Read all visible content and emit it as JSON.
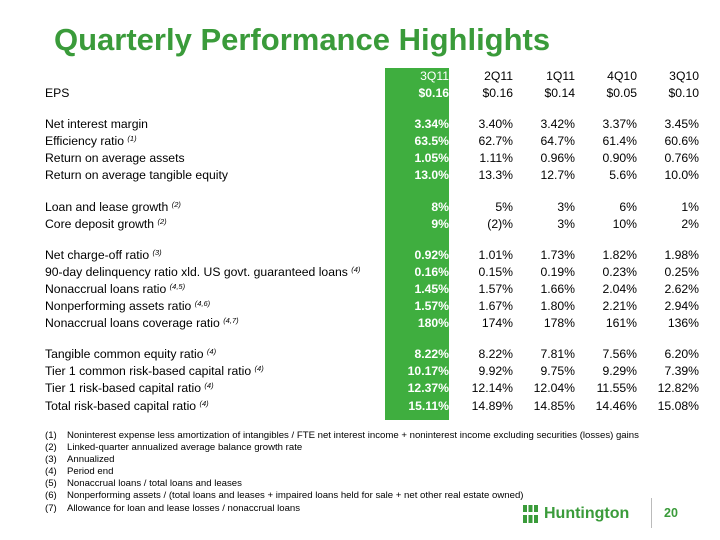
{
  "title": "Quarterly Performance Highlights",
  "colors": {
    "accent": "#3a9b3a",
    "highlight_column": "#3fae3f"
  },
  "columns": [
    "3Q11",
    "2Q11",
    "1Q11",
    "4Q10",
    "3Q10"
  ],
  "rows": [
    {
      "label": "EPS",
      "values": [
        "$0.16",
        "$0.16",
        "$0.14",
        "$0.05",
        "$0.10"
      ]
    },
    {
      "label": "Net interest margin",
      "values": [
        "3.34%",
        "3.40%",
        "3.42%",
        "3.37%",
        "3.45%"
      ]
    },
    {
      "label": "Efficiency ratio",
      "note": "(1)",
      "values": [
        "63.5%",
        "62.7%",
        "64.7%",
        "61.4%",
        "60.6%"
      ]
    },
    {
      "label": "Return on average assets",
      "values": [
        "1.05%",
        "1.11%",
        "0.96%",
        "0.90%",
        "0.76%"
      ]
    },
    {
      "label": "Return on average tangible equity",
      "values": [
        "13.0%",
        "13.3%",
        "12.7%",
        "5.6%",
        "10.0%"
      ]
    },
    {
      "label": "Loan and lease growth",
      "note": "(2)",
      "values": [
        "8%",
        "5%",
        "3%",
        "6%",
        "1%"
      ]
    },
    {
      "label": "Core deposit growth",
      "note": "(2)",
      "values": [
        "9%",
        "(2)%",
        "3%",
        "10%",
        "2%"
      ]
    },
    {
      "label": "Net charge-off ratio",
      "note": "(3)",
      "values": [
        "0.92%",
        "1.01%",
        "1.73%",
        "1.82%",
        "1.98%"
      ]
    },
    {
      "label": "90-day delinquency ratio xld. US govt. guaranteed  loans",
      "note": "(4)",
      "values": [
        "0.16%",
        "0.15%",
        "0.19%",
        "0.23%",
        "0.25%"
      ]
    },
    {
      "label": "Nonaccrual loans ratio",
      "note": "(4,5)",
      "values": [
        "1.45%",
        "1.57%",
        "1.66%",
        "2.04%",
        "2.62%"
      ]
    },
    {
      "label": "Nonperforming assets ratio",
      "note": "(4,6)",
      "values": [
        "1.57%",
        "1.67%",
        "1.80%",
        "2.21%",
        "2.94%"
      ]
    },
    {
      "label": "Nonaccrual loans coverage ratio",
      "note": "(4,7)",
      "values": [
        "180%",
        "174%",
        "178%",
        "161%",
        "136%"
      ]
    },
    {
      "label": "Tangible common equity ratio",
      "note": "(4)",
      "values": [
        "8.22%",
        "8.22%",
        "7.81%",
        "7.56%",
        "6.20%"
      ]
    },
    {
      "label": "Tier 1 common risk-based capital ratio",
      "note": "(4)",
      "values": [
        "10.17%",
        "9.92%",
        "9.75%",
        "9.29%",
        "7.39%"
      ]
    },
    {
      "label": "Tier 1 risk-based capital ratio",
      "note": "(4)",
      "values": [
        "12.37%",
        "12.14%",
        "12.04%",
        "11.55%",
        "12.82%"
      ]
    },
    {
      "label": "Total risk-based capital ratio",
      "note": "(4)",
      "values": [
        "15.11%",
        "14.89%",
        "14.85%",
        "14.46%",
        "15.08%"
      ]
    }
  ],
  "footnotes": [
    {
      "num": "(1)",
      "text": "Noninterest expense less amortization of intangibles / FTE net interest income + noninterest income excluding securities (losses) gains"
    },
    {
      "num": "(2)",
      "text": "Linked-quarter annualized average balance growth rate"
    },
    {
      "num": "(3)",
      "text": "Annualized"
    },
    {
      "num": "(4)",
      "text": "Period end"
    },
    {
      "num": "(5)",
      "text": "Nonaccrual loans / total loans and leases"
    },
    {
      "num": "(6)",
      "text": "Nonperforming assets / (total loans and leases + impaired loans held for sale + net other real estate owned)"
    },
    {
      "num": "(7)",
      "text": "Allowance for loan and lease losses / nonaccrual loans"
    }
  ],
  "logo": {
    "name": "Huntington",
    "icon": "huntington-logo-icon"
  },
  "page_number": "20"
}
